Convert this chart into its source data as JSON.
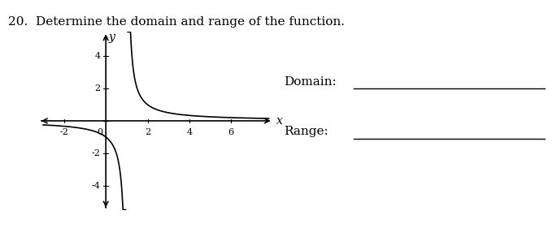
{
  "title": "20.  Determine the domain and range of the function.",
  "title_fontsize": 11,
  "domain_label": "Domain:",
  "range_label": "Range:",
  "vertical_asymptote": 1,
  "horizontal_asymptote": 0,
  "xlim": [
    -3.2,
    8.0
  ],
  "ylim": [
    -5.5,
    5.5
  ],
  "xticks": [
    -2,
    0,
    2,
    4,
    6
  ],
  "yticks": [
    -4,
    -2,
    0,
    2,
    4
  ],
  "xlabel": "x",
  "ylabel": "y",
  "line_color": "#000000",
  "bg_color": "#ffffff",
  "axis_color": "#000000"
}
